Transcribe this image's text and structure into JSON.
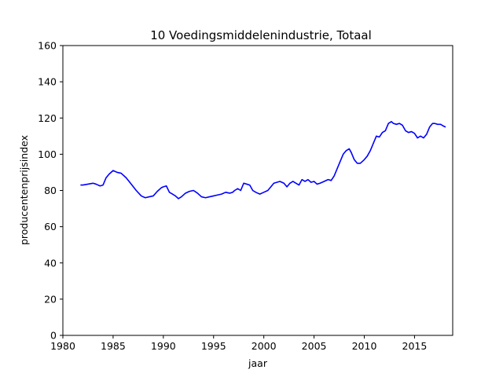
{
  "chart_data": {
    "type": "line",
    "title": "10 Voedingsmiddelenindustrie, Totaal",
    "xlabel": "jaar",
    "ylabel": "producentenprijsindex",
    "xlim": [
      1980,
      2018.8
    ],
    "ylim": [
      0,
      160
    ],
    "xticks": [
      1980,
      1985,
      1990,
      1995,
      2000,
      2005,
      2010,
      2015
    ],
    "yticks": [
      0,
      20,
      40,
      60,
      80,
      100,
      120,
      140,
      160
    ],
    "grid": false,
    "legend": "none",
    "series": [
      {
        "color": "#0000ff",
        "x": [
          1981.75,
          1982.0,
          1982.5,
          1983.0,
          1983.3,
          1983.7,
          1984.0,
          1984.3,
          1984.6,
          1985.0,
          1985.4,
          1985.8,
          1986.3,
          1986.8,
          1987.3,
          1987.8,
          1988.2,
          1988.6,
          1989.0,
          1989.4,
          1989.8,
          1990.0,
          1990.3,
          1990.6,
          1990.9,
          1991.2,
          1991.5,
          1991.8,
          1992.2,
          1992.6,
          1993.0,
          1993.4,
          1993.8,
          1994.2,
          1994.6,
          1995.0,
          1995.4,
          1995.8,
          1996.2,
          1996.6,
          1996.9,
          1997.1,
          1997.4,
          1997.7,
          1998.0,
          1998.3,
          1998.6,
          1998.9,
          1999.2,
          1999.6,
          2000.0,
          2000.4,
          2000.7,
          2001.0,
          2001.3,
          2001.6,
          2002.0,
          2002.3,
          2002.6,
          2002.9,
          2003.2,
          2003.5,
          2003.8,
          2004.1,
          2004.4,
          2004.7,
          2005.0,
          2005.3,
          2005.6,
          2006.0,
          2006.4,
          2006.7,
          2007.0,
          2007.3,
          2007.6,
          2007.9,
          2008.2,
          2008.5,
          2008.7,
          2009.0,
          2009.3,
          2009.6,
          2010.0,
          2010.3,
          2010.6,
          2010.9,
          2011.2,
          2011.5,
          2011.8,
          2012.1,
          2012.4,
          2012.7,
          2012.9,
          2013.2,
          2013.5,
          2013.8,
          2014.1,
          2014.4,
          2014.7,
          2015.0,
          2015.3,
          2015.6,
          2015.9,
          2016.2,
          2016.5,
          2016.8,
          2017.0,
          2017.3,
          2017.6,
          2017.9,
          2018.1
        ],
        "y": [
          83,
          83,
          83.5,
          84,
          83.5,
          82.5,
          83,
          87,
          89,
          91,
          90,
          89.5,
          87,
          83.5,
          80,
          77,
          76,
          76.5,
          77,
          79.5,
          81.5,
          82,
          82.5,
          79,
          78,
          77,
          75.5,
          76.5,
          78.5,
          79.5,
          80,
          78.5,
          76.5,
          76,
          76.5,
          77,
          77.5,
          78,
          79,
          78.5,
          79,
          80,
          81,
          80,
          84,
          83.5,
          83,
          80,
          79,
          78,
          79,
          80,
          82,
          84,
          84.5,
          85,
          84,
          82,
          84,
          85,
          84,
          83,
          86,
          85,
          86,
          84.5,
          85,
          83.5,
          84,
          85,
          86,
          85.5,
          88,
          92,
          96,
          100,
          102,
          103,
          101,
          97,
          95,
          95,
          97,
          99,
          102,
          106,
          110,
          109.5,
          112,
          113,
          117,
          118,
          117,
          116.5,
          117,
          116,
          113,
          112,
          112.5,
          111.5,
          109,
          110,
          109,
          111,
          115,
          117,
          117,
          116.5,
          116.5,
          115.5,
          115
        ]
      }
    ]
  }
}
